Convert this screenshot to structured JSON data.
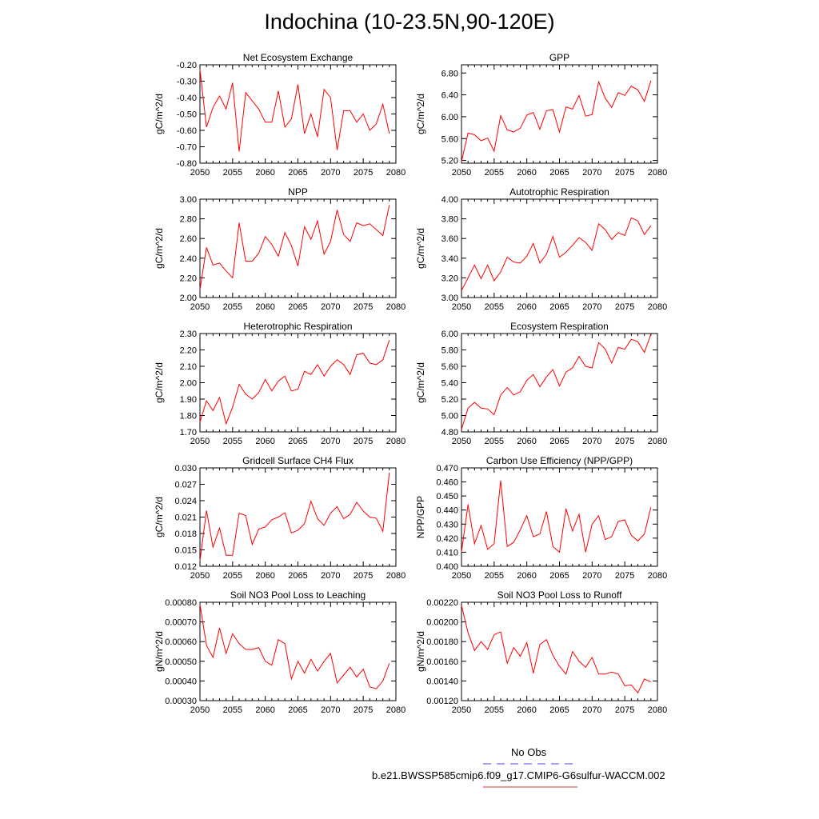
{
  "title": "Indochina (10-23.5N,90-120E)",
  "legend": {
    "obs_label": "No Obs",
    "obs_color": "#4444dd",
    "case_label": "b.e21.BWSSP585cmip6.f09_g17.CMIP6-G6sulfur-WACCM.002",
    "case_color": "#dd3333"
  },
  "chart_data": [
    {
      "type": "line",
      "title": "Net Ecosystem Exchange",
      "ylabel": "gC/m^2/d",
      "xlim": [
        2050,
        2080
      ],
      "ylim": [
        -0.8,
        -0.2
      ],
      "xticks": [
        "2050",
        "2055",
        "2060",
        "2065",
        "2070",
        "2075",
        "2080"
      ],
      "yticks": [
        "-0.20",
        "-0.30",
        "-0.40",
        "-0.50",
        "-0.60",
        "-0.70",
        "-0.80"
      ],
      "series": [
        {
          "color": "#ff0000",
          "x": [
            2050,
            2051,
            2052,
            2053,
            2054,
            2055,
            2056,
            2057,
            2058,
            2059,
            2060,
            2061,
            2062,
            2063,
            2064,
            2065,
            2066,
            2067,
            2068,
            2069,
            2070,
            2071,
            2072,
            2073,
            2074,
            2075,
            2076,
            2077,
            2078,
            2079
          ],
          "values": [
            -0.23,
            -0.58,
            -0.46,
            -0.39,
            -0.47,
            -0.31,
            -0.73,
            -0.37,
            -0.42,
            -0.47,
            -0.55,
            -0.55,
            -0.36,
            -0.58,
            -0.53,
            -0.32,
            -0.62,
            -0.5,
            -0.64,
            -0.35,
            -0.4,
            -0.72,
            -0.48,
            -0.48,
            -0.55,
            -0.5,
            -0.6,
            -0.56,
            -0.44,
            -0.62
          ]
        }
      ]
    },
    {
      "type": "line",
      "title": "GPP",
      "ylabel": "gC/m^2/d",
      "xlim": [
        2050,
        2080
      ],
      "ylim": [
        5.15,
        6.95
      ],
      "xticks": [
        "2050",
        "2055",
        "2060",
        "2065",
        "2070",
        "2075",
        "2080"
      ],
      "yticks": [
        "5.20",
        "5.60",
        "6.00",
        "6.40",
        "6.80"
      ],
      "series": [
        {
          "color": "#ff0000",
          "x": [
            2050,
            2051,
            2052,
            2053,
            2054,
            2055,
            2056,
            2057,
            2058,
            2059,
            2060,
            2061,
            2062,
            2063,
            2064,
            2065,
            2066,
            2067,
            2068,
            2069,
            2070,
            2071,
            2072,
            2073,
            2074,
            2075,
            2076,
            2077,
            2078,
            2079
          ],
          "values": [
            5.18,
            5.7,
            5.67,
            5.56,
            5.61,
            5.37,
            6.02,
            5.76,
            5.72,
            5.79,
            6.03,
            6.08,
            5.77,
            6.11,
            6.13,
            5.72,
            6.18,
            6.14,
            6.39,
            6.01,
            6.04,
            6.64,
            6.34,
            6.17,
            6.44,
            6.39,
            6.56,
            6.49,
            6.28,
            6.66
          ]
        }
      ]
    },
    {
      "type": "line",
      "title": "NPP",
      "ylabel": "gC/m^2/d",
      "xlim": [
        2050,
        2080
      ],
      "ylim": [
        2.0,
        3.0
      ],
      "xticks": [
        "2050",
        "2055",
        "2060",
        "2065",
        "2070",
        "2075",
        "2080"
      ],
      "yticks": [
        "2.00",
        "2.20",
        "2.40",
        "2.60",
        "2.80",
        "3.00"
      ],
      "series": [
        {
          "color": "#ff0000",
          "x": [
            2050,
            2051,
            2052,
            2053,
            2054,
            2055,
            2056,
            2057,
            2058,
            2059,
            2060,
            2061,
            2062,
            2063,
            2064,
            2065,
            2066,
            2067,
            2068,
            2069,
            2070,
            2071,
            2072,
            2073,
            2074,
            2075,
            2076,
            2077,
            2078,
            2079
          ],
          "values": [
            2.08,
            2.51,
            2.33,
            2.35,
            2.27,
            2.2,
            2.76,
            2.37,
            2.37,
            2.45,
            2.62,
            2.54,
            2.42,
            2.66,
            2.53,
            2.32,
            2.72,
            2.59,
            2.78,
            2.44,
            2.57,
            2.89,
            2.64,
            2.57,
            2.76,
            2.73,
            2.75,
            2.69,
            2.63,
            2.94
          ]
        }
      ]
    },
    {
      "type": "line",
      "title": "Autotrophic Respiration",
      "ylabel": "gC/m^2/d",
      "xlim": [
        2050,
        2080
      ],
      "ylim": [
        3.0,
        4.0
      ],
      "xticks": [
        "2050",
        "2055",
        "2060",
        "2065",
        "2070",
        "2075",
        "2080"
      ],
      "yticks": [
        "3.00",
        "3.20",
        "3.40",
        "3.60",
        "3.80",
        "4.00"
      ],
      "series": [
        {
          "color": "#ff0000",
          "x": [
            2050,
            2051,
            2052,
            2053,
            2054,
            2055,
            2056,
            2057,
            2058,
            2059,
            2060,
            2061,
            2062,
            2063,
            2064,
            2065,
            2066,
            2067,
            2068,
            2069,
            2070,
            2071,
            2072,
            2073,
            2074,
            2075,
            2076,
            2077,
            2078,
            2079
          ],
          "values": [
            3.07,
            3.2,
            3.33,
            3.19,
            3.33,
            3.17,
            3.26,
            3.41,
            3.36,
            3.35,
            3.42,
            3.55,
            3.35,
            3.44,
            3.62,
            3.41,
            3.46,
            3.53,
            3.61,
            3.56,
            3.48,
            3.75,
            3.69,
            3.59,
            3.66,
            3.63,
            3.81,
            3.78,
            3.64,
            3.73
          ]
        }
      ]
    },
    {
      "type": "line",
      "title": "Heterotrophic Respiration",
      "ylabel": "gC/m^2/d",
      "xlim": [
        2050,
        2080
      ],
      "ylim": [
        1.7,
        2.3
      ],
      "xticks": [
        "2050",
        "2055",
        "2060",
        "2065",
        "2070",
        "2075",
        "2080"
      ],
      "yticks": [
        "1.70",
        "1.80",
        "1.90",
        "2.00",
        "2.10",
        "2.20",
        "2.30"
      ],
      "series": [
        {
          "color": "#ff0000",
          "x": [
            2050,
            2051,
            2052,
            2053,
            2054,
            2055,
            2056,
            2057,
            2058,
            2059,
            2060,
            2061,
            2062,
            2063,
            2064,
            2065,
            2066,
            2067,
            2068,
            2069,
            2070,
            2071,
            2072,
            2073,
            2074,
            2075,
            2076,
            2077,
            2078,
            2079
          ],
          "values": [
            1.76,
            1.89,
            1.83,
            1.91,
            1.75,
            1.85,
            1.99,
            1.93,
            1.9,
            1.94,
            2.02,
            1.95,
            2.01,
            2.04,
            1.95,
            1.96,
            2.07,
            2.05,
            2.11,
            2.04,
            2.1,
            2.14,
            2.11,
            2.05,
            2.17,
            2.18,
            2.12,
            2.11,
            2.14,
            2.26
          ]
        }
      ]
    },
    {
      "type": "line",
      "title": "Ecosystem Respiration",
      "ylabel": "gC/m^2/d",
      "xlim": [
        2050,
        2080
      ],
      "ylim": [
        4.8,
        6.0
      ],
      "xticks": [
        "2050",
        "2055",
        "2060",
        "2065",
        "2070",
        "2075",
        "2080"
      ],
      "yticks": [
        "4.80",
        "5.00",
        "5.20",
        "5.40",
        "5.60",
        "5.80",
        "6.00"
      ],
      "series": [
        {
          "color": "#ff0000",
          "x": [
            2050,
            2051,
            2052,
            2053,
            2054,
            2055,
            2056,
            2057,
            2058,
            2059,
            2060,
            2061,
            2062,
            2063,
            2064,
            2065,
            2066,
            2067,
            2068,
            2069,
            2070,
            2071,
            2072,
            2073,
            2074,
            2075,
            2076,
            2077,
            2078,
            2079
          ],
          "values": [
            4.83,
            5.09,
            5.16,
            5.09,
            5.08,
            5.01,
            5.25,
            5.34,
            5.25,
            5.29,
            5.43,
            5.5,
            5.35,
            5.47,
            5.56,
            5.36,
            5.53,
            5.58,
            5.72,
            5.6,
            5.58,
            5.89,
            5.81,
            5.64,
            5.83,
            5.81,
            5.93,
            5.9,
            5.77,
            5.99
          ]
        }
      ]
    },
    {
      "type": "line",
      "title": "Gridcell Surface CH4 Flux",
      "ylabel": "gC/m^2/d",
      "xlim": [
        2050,
        2080
      ],
      "ylim": [
        0.012,
        0.03
      ],
      "xticks": [
        "2050",
        "2055",
        "2060",
        "2065",
        "2070",
        "2075",
        "2080"
      ],
      "yticks": [
        "0.012",
        "0.015",
        "0.018",
        "0.021",
        "0.024",
        "0.027",
        "0.030"
      ],
      "series": [
        {
          "color": "#ff0000",
          "x": [
            2050,
            2051,
            2052,
            2053,
            2054,
            2055,
            2056,
            2057,
            2058,
            2059,
            2060,
            2061,
            2062,
            2063,
            2064,
            2065,
            2066,
            2067,
            2068,
            2069,
            2070,
            2071,
            2072,
            2073,
            2074,
            2075,
            2076,
            2077,
            2078,
            2079
          ],
          "values": [
            0.013,
            0.0222,
            0.0155,
            0.019,
            0.014,
            0.014,
            0.0217,
            0.0213,
            0.016,
            0.0188,
            0.0192,
            0.0205,
            0.021,
            0.0218,
            0.0181,
            0.0186,
            0.0198,
            0.0239,
            0.0207,
            0.0195,
            0.0217,
            0.0229,
            0.0207,
            0.0215,
            0.0237,
            0.0221,
            0.021,
            0.0208,
            0.0184,
            0.0291
          ]
        }
      ]
    },
    {
      "type": "line",
      "title": "Carbon Use Efficiency (NPP/GPP)",
      "ylabel": "NPP/GPP",
      "xlim": [
        2050,
        2080
      ],
      "ylim": [
        0.4,
        0.47
      ],
      "xticks": [
        "2050",
        "2055",
        "2060",
        "2065",
        "2070",
        "2075",
        "2080"
      ],
      "yticks": [
        "0.400",
        "0.410",
        "0.420",
        "0.430",
        "0.440",
        "0.450",
        "0.460",
        "0.470"
      ],
      "series": [
        {
          "color": "#ff0000",
          "x": [
            2050,
            2051,
            2052,
            2053,
            2054,
            2055,
            2056,
            2057,
            2058,
            2059,
            2060,
            2061,
            2062,
            2063,
            2064,
            2065,
            2066,
            2067,
            2068,
            2069,
            2070,
            2071,
            2072,
            2073,
            2074,
            2075,
            2076,
            2077,
            2078,
            2079
          ],
          "values": [
            0.41,
            0.444,
            0.416,
            0.429,
            0.412,
            0.416,
            0.461,
            0.414,
            0.417,
            0.426,
            0.436,
            0.421,
            0.423,
            0.439,
            0.414,
            0.41,
            0.441,
            0.425,
            0.437,
            0.41,
            0.43,
            0.436,
            0.419,
            0.421,
            0.432,
            0.433,
            0.422,
            0.418,
            0.423,
            0.442
          ]
        }
      ]
    },
    {
      "type": "line",
      "title": "Soil NO3 Pool Loss to Leaching",
      "ylabel": "gN/m^2/d",
      "xlim": [
        2050,
        2080
      ],
      "ylim": [
        0.0003,
        0.0008
      ],
      "xticks": [
        "2050",
        "2055",
        "2060",
        "2065",
        "2070",
        "2075",
        "2080"
      ],
      "yticks": [
        "0.00030",
        "0.00040",
        "0.00050",
        "0.00060",
        "0.00070",
        "0.00080"
      ],
      "series": [
        {
          "color": "#ff0000",
          "x": [
            2050,
            2051,
            2052,
            2053,
            2054,
            2055,
            2056,
            2057,
            2058,
            2059,
            2060,
            2061,
            2062,
            2063,
            2064,
            2065,
            2066,
            2067,
            2068,
            2069,
            2070,
            2071,
            2072,
            2073,
            2074,
            2075,
            2076,
            2077,
            2078,
            2079
          ],
          "values": [
            0.00079,
            0.00058,
            0.00052,
            0.00067,
            0.00054,
            0.00064,
            0.00059,
            0.00056,
            0.00056,
            0.00057,
            0.0005,
            0.00048,
            0.00061,
            0.00059,
            0.00041,
            0.0005,
            0.00044,
            0.00051,
            0.00045,
            0.0005,
            0.00054,
            0.00039,
            0.00043,
            0.00047,
            0.00042,
            0.00046,
            0.00037,
            0.00036,
            0.0004,
            0.00049
          ]
        }
      ]
    },
    {
      "type": "line",
      "title": "Soil NO3 Pool Loss to Runoff",
      "ylabel": "gN/m^2/d",
      "xlim": [
        2050,
        2080
      ],
      "ylim": [
        0.0012,
        0.0022
      ],
      "xticks": [
        "2050",
        "2055",
        "2060",
        "2065",
        "2070",
        "2075",
        "2080"
      ],
      "yticks": [
        "0.00120",
        "0.00140",
        "0.00160",
        "0.00180",
        "0.00200",
        "0.00220"
      ],
      "series": [
        {
          "color": "#ff0000",
          "x": [
            2050,
            2051,
            2052,
            2053,
            2054,
            2055,
            2056,
            2057,
            2058,
            2059,
            2060,
            2061,
            2062,
            2063,
            2064,
            2065,
            2066,
            2067,
            2068,
            2069,
            2070,
            2071,
            2072,
            2073,
            2074,
            2075,
            2076,
            2077,
            2078,
            2079
          ],
          "values": [
            0.00217,
            0.00189,
            0.00171,
            0.0018,
            0.00172,
            0.00187,
            0.0019,
            0.00158,
            0.00174,
            0.00165,
            0.00179,
            0.00148,
            0.00177,
            0.00182,
            0.00166,
            0.00155,
            0.00147,
            0.0017,
            0.0016,
            0.00154,
            0.00164,
            0.00147,
            0.00147,
            0.00149,
            0.00147,
            0.00135,
            0.00136,
            0.00128,
            0.00142,
            0.00139
          ]
        }
      ]
    }
  ]
}
